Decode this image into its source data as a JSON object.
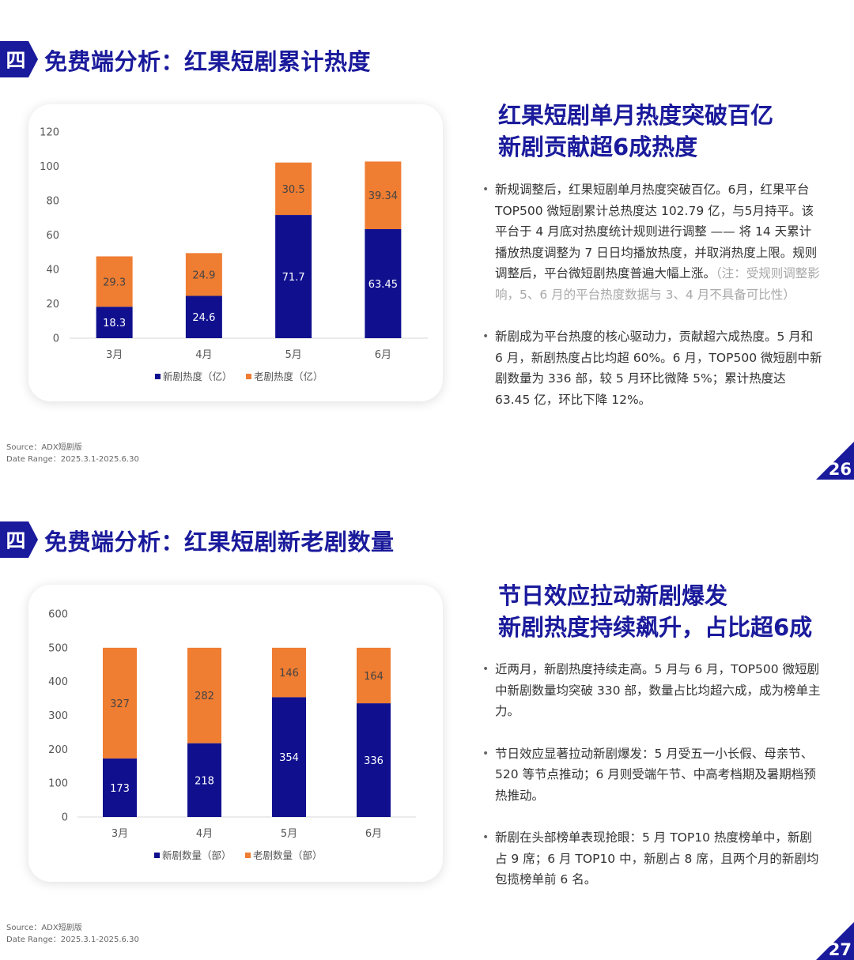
{
  "colors": {
    "brand": "#1a1a9c",
    "new": "#10108f",
    "old": "#ef7d32"
  },
  "slide1": {
    "badge": "四",
    "heading": "免费端分析：红果短剧累计热度",
    "headline": [
      "红果短剧单月热度突破百亿",
      "新剧贡献超6成热度"
    ],
    "bullets": [
      {
        "text": "新规调整后，红果短剧单月热度突破百亿。6月，红果平台 TOP500 微短剧累计总热度达 102.79 亿，与5月持平。该平台于 4 月底对热度统计规则进行调整 —— 将 14 天累计播放热度调整为 7 日日均播放热度，并取消热度上限。规则调整后，平台微短剧热度普遍大幅上涨。",
        "note": "（注：受规则调整影响，5、6 月的平台热度数据与 3、4 月不具备可比性）"
      },
      {
        "text": "新剧成为平台热度的核心驱动力，贡献超六成热度。5 月和 6 月，新剧热度占比均超 60%。6 月，TOP500 微短剧中新剧数量为 336 部，较 5 月环比微降 5%；累计热度达 63.45 亿，环比下降 12%。",
        "note": ""
      }
    ],
    "source": "Source：ADX短剧版",
    "date_range": "Date Range：2025.3.1-2025.6.30",
    "page": "26"
  },
  "slide2": {
    "badge": "四",
    "heading": "免费端分析：红果短剧新老剧数量",
    "headline": [
      "节日效应拉动新剧爆发",
      "新剧热度持续飙升，占比超6成"
    ],
    "bullets": [
      {
        "text": "近两月，新剧热度持续走高。5 月与 6 月，TOP500 微短剧中新剧数量均突破 330 部，数量占比均超六成，成为榜单主力。",
        "note": ""
      },
      {
        "text": "节日效应显著拉动新剧爆发：5 月受五一小长假、母亲节、520 等节点推动；6 月则受端午节、中高考档期及暑期档预热推动。",
        "note": ""
      },
      {
        "text": "新剧在头部榜单表现抢眼：5 月 TOP10 热度榜单中，新剧占 9 席；6 月 TOP10 中，新剧占 8 席，且两个月的新剧均包揽榜单前 6 名。",
        "note": ""
      }
    ],
    "source": "Source：ADX短剧版",
    "date_range": "Date Range：2025.3.1-2025.6.30",
    "page": "27"
  },
  "chart_data": [
    {
      "type": "bar",
      "stacked": true,
      "categories": [
        "3月",
        "4月",
        "5月",
        "6月"
      ],
      "series": [
        {
          "name": "新剧热度（亿）",
          "values": [
            18.3,
            24.6,
            71.7,
            63.45
          ],
          "labels": [
            "18.3",
            "24.6",
            "71.7",
            "63.45"
          ]
        },
        {
          "name": "老剧热度（亿）",
          "values": [
            29.3,
            24.9,
            30.5,
            39.34
          ],
          "labels": [
            "29.3",
            "24.9",
            "30.5",
            "39.34"
          ]
        }
      ],
      "yticks": [
        "0",
        "20",
        "40",
        "60",
        "80",
        "100",
        "120"
      ],
      "ylim": [
        0,
        120
      ],
      "grid": false,
      "legend": "bottom"
    },
    {
      "type": "bar",
      "stacked": true,
      "categories": [
        "3月",
        "4月",
        "5月",
        "6月"
      ],
      "series": [
        {
          "name": "新剧数量（部）",
          "values": [
            173,
            218,
            354,
            336
          ],
          "labels": [
            "173",
            "218",
            "354",
            "336"
          ]
        },
        {
          "name": "老剧数量（部）",
          "values": [
            327,
            282,
            146,
            164
          ],
          "labels": [
            "327",
            "282",
            "146",
            "164"
          ]
        }
      ],
      "yticks": [
        "0",
        "100",
        "200",
        "300",
        "400",
        "500",
        "600"
      ],
      "ylim": [
        0,
        600
      ],
      "grid": false,
      "legend": "bottom"
    }
  ]
}
